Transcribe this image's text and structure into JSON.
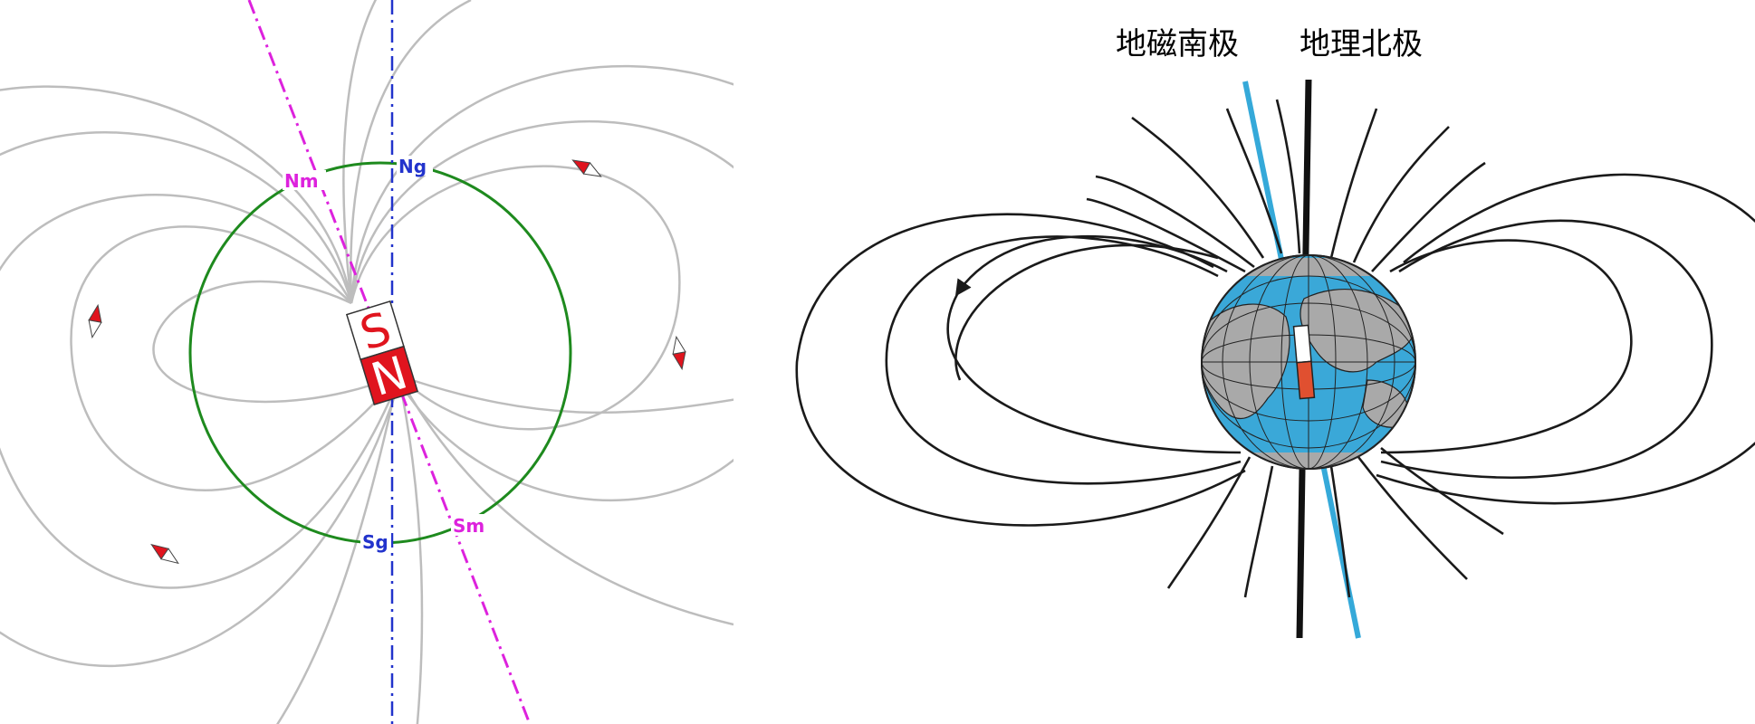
{
  "left_diagram": {
    "magnet_pole_top": "S",
    "magnet_pole_bottom": "N",
    "label_geographic_north": "Ng",
    "label_magnetic_north": "Nm",
    "label_geographic_south": "Sg",
    "label_magnetic_south": "Sm"
  },
  "right_diagram": {
    "label_geomagnetic_south": "地磁南极",
    "label_geographic_north": "地理北极"
  },
  "colors": {
    "field_line_left": "#bdbdbd",
    "field_line_right": "#1a1a1a",
    "globe_ocean": "#3aa8d8",
    "globe_land": "#a9a9a9",
    "magnetic_axis_left": "#dd22dd",
    "geographic_axis_left": "#2233cc",
    "circle": "#1e8a1e",
    "magnet_red": "#e0141e",
    "magnetic_axis_right": "#35a9d9"
  },
  "icons": [
    "compass-needle-icon",
    "bar-magnet-icon",
    "earth-globe-icon"
  ]
}
